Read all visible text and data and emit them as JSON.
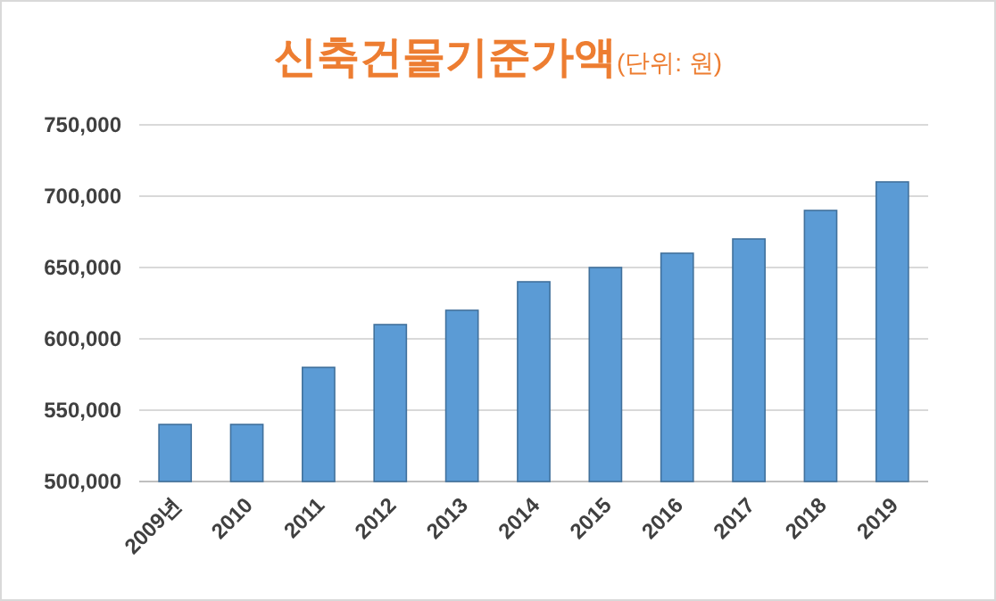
{
  "chart_data": {
    "type": "bar",
    "title": "신축건물기준가액",
    "subtitle": "(단위: 원)",
    "categories": [
      "2009년",
      "2010",
      "2011",
      "2012",
      "2013",
      "2014",
      "2015",
      "2016",
      "2017",
      "2018",
      "2019"
    ],
    "values": [
      540000,
      540000,
      580000,
      610000,
      620000,
      640000,
      650000,
      660000,
      670000,
      690000,
      710000
    ],
    "color": "#5b9bd5",
    "ylim": [
      500000,
      750000
    ],
    "yticks": [
      {
        "value": 500000,
        "label": "500,000"
      },
      {
        "value": 550000,
        "label": "550,000"
      },
      {
        "value": 600000,
        "label": "600,000"
      },
      {
        "value": 650000,
        "label": "650,000"
      },
      {
        "value": 700000,
        "label": "700,000"
      },
      {
        "value": 750000,
        "label": "750,000"
      }
    ],
    "grid": "y"
  }
}
